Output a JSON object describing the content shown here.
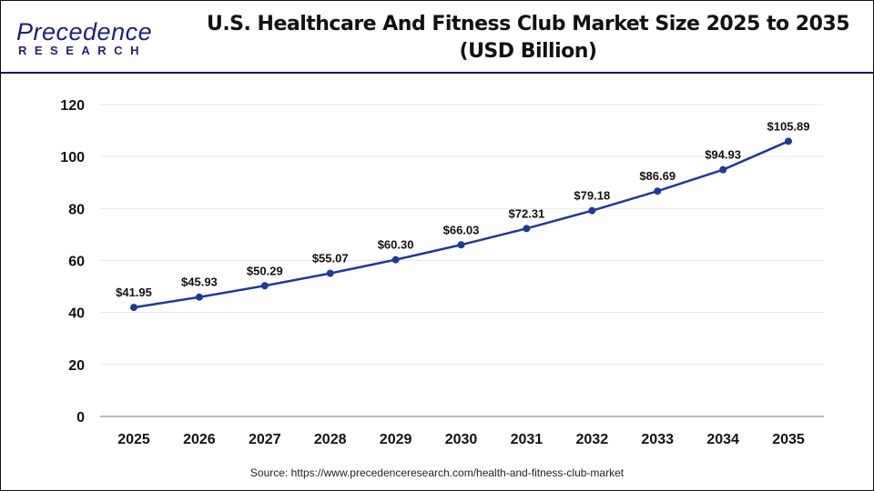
{
  "logo": {
    "main": "Precedence",
    "sub": "RESEARCH"
  },
  "title_line1": "U.S. Healthcare And Fitness Club Market Size 2025 to 2035",
  "title_line2": "(USD Billion)",
  "source": "Source: https://www.precedenceresearch.com/health-and-fitness-club-market",
  "chart_data": {
    "type": "line",
    "title": "U.S. Healthcare And Fitness Club Market Size 2025 to 2035 (USD Billion)",
    "categories": [
      "2025",
      "2026",
      "2027",
      "2028",
      "2029",
      "2030",
      "2031",
      "2032",
      "2033",
      "2034",
      "2035"
    ],
    "values": [
      41.95,
      45.93,
      50.29,
      55.07,
      60.3,
      66.03,
      72.31,
      79.18,
      86.69,
      94.93,
      105.89
    ],
    "data_labels": [
      "$41.95",
      "$45.93",
      "$50.29",
      "$55.07",
      "$60.30",
      "$66.03",
      "$72.31",
      "$79.18",
      "$86.69",
      "$94.93",
      "$105.89"
    ],
    "yticks": [
      0,
      20,
      40,
      60,
      80,
      100,
      120
    ],
    "ylim": [
      0,
      120
    ],
    "grid": true,
    "line_color": "#1f3a93"
  }
}
